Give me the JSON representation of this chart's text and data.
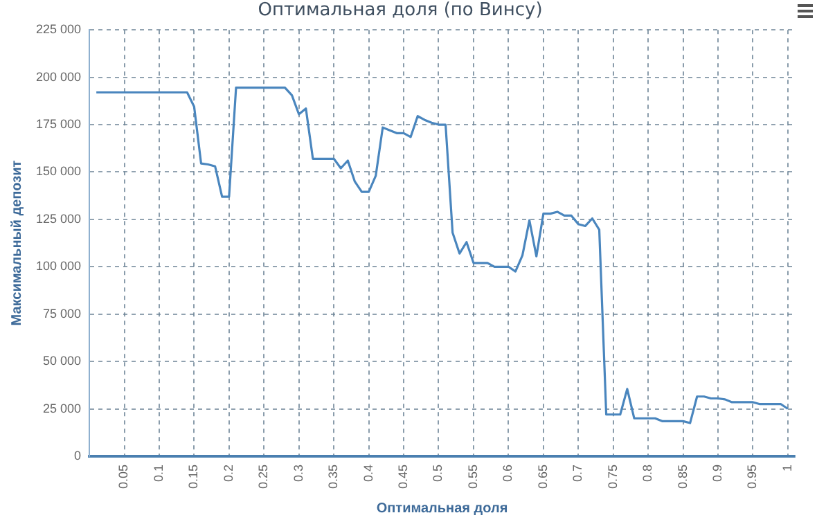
{
  "chart_data": {
    "type": "line",
    "title": "Оптимальная доля (по Винсу)",
    "xlabel": "Оптимальная доля",
    "ylabel": "Максимальный депозит",
    "x": [
      0.01,
      0.02,
      0.03,
      0.04,
      0.05,
      0.06,
      0.07,
      0.08,
      0.09,
      0.1,
      0.11,
      0.12,
      0.13,
      0.14,
      0.15,
      0.16,
      0.17,
      0.18,
      0.19,
      0.2,
      0.21,
      0.22,
      0.23,
      0.24,
      0.25,
      0.26,
      0.27,
      0.28,
      0.29,
      0.3,
      0.31,
      0.32,
      0.33,
      0.34,
      0.35,
      0.36,
      0.37,
      0.38,
      0.39,
      0.4,
      0.41,
      0.42,
      0.43,
      0.44,
      0.45,
      0.46,
      0.47,
      0.48,
      0.49,
      0.5,
      0.51,
      0.52,
      0.53,
      0.54,
      0.55,
      0.56,
      0.57,
      0.58,
      0.59,
      0.6,
      0.61,
      0.62,
      0.63,
      0.64,
      0.65,
      0.66,
      0.67,
      0.68,
      0.69,
      0.7,
      0.71,
      0.72,
      0.73,
      0.74,
      0.75,
      0.76,
      0.77,
      0.78,
      0.79,
      0.8,
      0.81,
      0.82,
      0.83,
      0.84,
      0.85,
      0.86,
      0.87,
      0.88,
      0.89,
      0.9,
      0.91,
      0.92,
      0.93,
      0.94,
      0.95,
      0.96,
      0.97,
      0.98,
      0.99,
      1.0
    ],
    "series": [
      {
        "color": "#4a86be",
        "values": [
          192000,
          192000,
          192000,
          192000,
          192000,
          192000,
          192000,
          192000,
          192000,
          192000,
          192000,
          192000,
          192000,
          192000,
          184500,
          154500,
          154000,
          153000,
          137000,
          137000,
          194500,
          194500,
          194500,
          194500,
          194500,
          194500,
          194500,
          194500,
          190500,
          180500,
          183500,
          157000,
          157000,
          157000,
          157000,
          152000,
          156000,
          145000,
          139500,
          139500,
          148000,
          173500,
          172000,
          170500,
          170500,
          168500,
          179500,
          177500,
          176000,
          175000,
          175000,
          118000,
          107000,
          113000,
          102000,
          102000,
          102000,
          100000,
          100000,
          100000,
          97500,
          106000,
          124500,
          105500,
          128000,
          128000,
          129000,
          127000,
          127000,
          122500,
          121500,
          125500,
          119500,
          22000,
          22000,
          22000,
          35500,
          20000,
          20000,
          20000,
          20000,
          18500,
          18500,
          18500,
          18500,
          17500,
          31500,
          31500,
          30500,
          30500,
          30000,
          28500,
          28500,
          28500,
          28500,
          27500,
          27500,
          27500,
          27500,
          25000
        ]
      }
    ],
    "xlim": [
      0,
      1.01
    ],
    "xticks": [
      0.05,
      0.1,
      0.15,
      0.2,
      0.25,
      0.3,
      0.35,
      0.4,
      0.45,
      0.5,
      0.55,
      0.6,
      0.65,
      0.7,
      0.75,
      0.8,
      0.85,
      0.9,
      0.95,
      1
    ],
    "ylim": [
      0,
      225000
    ],
    "yticks": [
      {
        "value": 0,
        "label": "0"
      },
      {
        "value": 25000,
        "label": "25 000"
      },
      {
        "value": 50000,
        "label": "50 000"
      },
      {
        "value": 75000,
        "label": "75 000"
      },
      {
        "value": 100000,
        "label": "100 000"
      },
      {
        "value": 125000,
        "label": "125 000"
      },
      {
        "value": 150000,
        "label": "150 000"
      },
      {
        "value": 175000,
        "label": "175 000"
      },
      {
        "value": 200000,
        "label": "200 000"
      },
      {
        "value": 225000,
        "label": "225 000"
      }
    ],
    "grid": true,
    "legend": false,
    "marker": "none",
    "line_style": "solid"
  }
}
